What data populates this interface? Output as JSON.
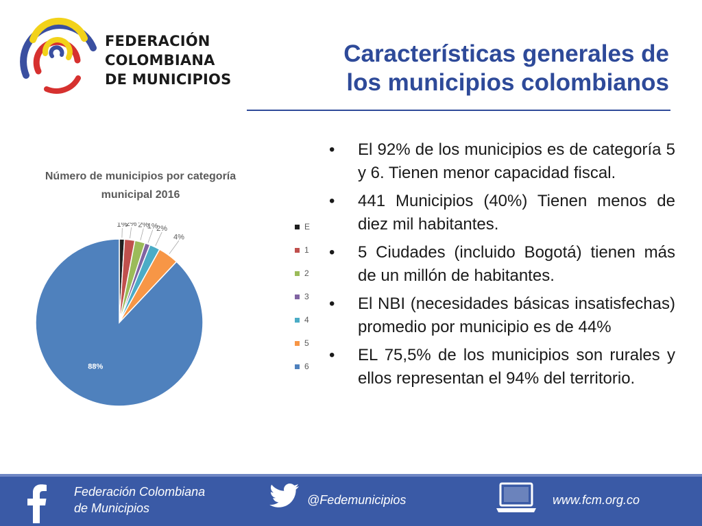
{
  "logo": {
    "line1": "FEDERACIÓN",
    "line2": "COLOMBIANA",
    "line3": "DE MUNICIPIOS"
  },
  "slide": {
    "title_line1": "Características generales de",
    "title_line2": "los municipios colombianos"
  },
  "chart_data": {
    "type": "pie",
    "title_line1": "Número de municipios por categoría",
    "title_line2": "municipal 2016",
    "slices": [
      {
        "category": "E",
        "percent": 1,
        "label": "1%",
        "color": "#1f1f1f"
      },
      {
        "category": "1",
        "percent": 2,
        "label": "2%",
        "color": "#c0504d"
      },
      {
        "category": "2",
        "percent": 2,
        "label": "2%",
        "color": "#9bbb59"
      },
      {
        "category": "3",
        "percent": 1,
        "label": "1%",
        "color": "#8064a2"
      },
      {
        "category": "4",
        "percent": 2,
        "label": "2%",
        "color": "#4bacc6"
      },
      {
        "category": "5",
        "percent": 4,
        "label": "4%",
        "color": "#f79646"
      },
      {
        "category": "6",
        "percent": 88,
        "label": "88%",
        "color": "#4f81bd"
      }
    ],
    "legend_position": "right"
  },
  "bullets": [
    "El 92% de los municipios es de categoría 5 y 6. Tienen menor capacidad fiscal.",
    "441 Municipios (40%) Tienen menos de diez mil habitantes.",
    "5 Ciudades (incluido Bogotá) tienen más de un millón de habitantes.",
    "El NBI (necesidades básicas insatisfechas) promedio por municipio es de 44%",
    "EL 75,5% de los municipios son rurales y ellos representan el 94% del territorio."
  ],
  "footer": {
    "org_line1": "Federación Colombiana",
    "org_line2": "de Municipios",
    "twitter_handle": "@Fedemunicipios",
    "website": "www.fcm.org.co",
    "icons": [
      "facebook-icon",
      "twitter-icon",
      "computer-icon"
    ]
  }
}
